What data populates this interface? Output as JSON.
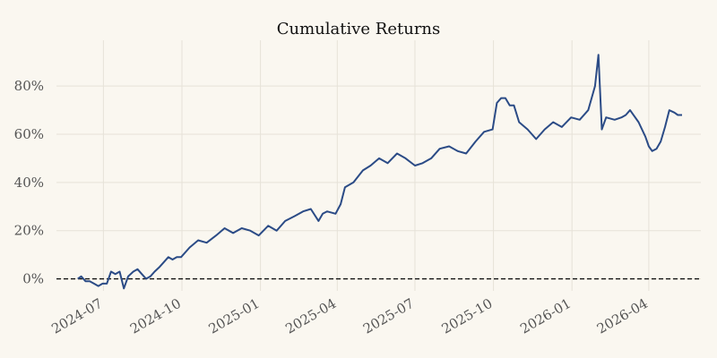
{
  "chart_data": {
    "type": "line",
    "title": "Cumulative Returns",
    "xlabel": "",
    "ylabel": "",
    "ylim": [
      -5,
      99
    ],
    "xlim": [
      "2024-05-07",
      "2026-06-01"
    ],
    "y_ticks": [
      0,
      20,
      40,
      60,
      80
    ],
    "y_tick_labels": [
      "0%",
      "20%",
      "40%",
      "60%",
      "80%"
    ],
    "x_ticks": [
      "2024-07-01",
      "2024-10-01",
      "2025-01-01",
      "2025-04-01",
      "2025-07-01",
      "2025-10-01",
      "2026-01-01",
      "2026-04-01"
    ],
    "x_tick_labels": [
      "2024-07",
      "2024-10",
      "2025-01",
      "2025-04",
      "2025-07",
      "2025-10",
      "2026-01",
      "2026-04"
    ],
    "grid": true,
    "reference_line": {
      "y": 0,
      "style": "dashed"
    },
    "colors": {
      "series": "#2b4b86",
      "background": "#faf7f0",
      "grid": "#e6e2d8",
      "reference": "#111111"
    },
    "series": [
      {
        "x": [
          "2024-06-01",
          "2024-06-05",
          "2024-06-10",
          "2024-06-15",
          "2024-06-20",
          "2024-06-25",
          "2024-06-30",
          "2024-07-05",
          "2024-07-10",
          "2024-07-15",
          "2024-07-20",
          "2024-07-25",
          "2024-07-30",
          "2024-08-05",
          "2024-08-10",
          "2024-08-15",
          "2024-08-20",
          "2024-08-25",
          "2024-08-30",
          "2024-09-05",
          "2024-09-10",
          "2024-09-15",
          "2024-09-20",
          "2024-09-25",
          "2024-09-30",
          "2024-10-10",
          "2024-10-20",
          "2024-10-30",
          "2024-11-10",
          "2024-11-20",
          "2024-11-30",
          "2024-12-10",
          "2024-12-20",
          "2024-12-30",
          "2025-01-10",
          "2025-01-20",
          "2025-01-30",
          "2025-02-10",
          "2025-02-20",
          "2025-03-01",
          "2025-03-10",
          "2025-03-15",
          "2025-03-20",
          "2025-03-30",
          "2025-04-05",
          "2025-04-10",
          "2025-04-20",
          "2025-05-01",
          "2025-05-10",
          "2025-05-20",
          "2025-05-30",
          "2025-06-10",
          "2025-06-20",
          "2025-07-01",
          "2025-07-10",
          "2025-07-20",
          "2025-07-30",
          "2025-08-10",
          "2025-08-20",
          "2025-08-30",
          "2025-09-10",
          "2025-09-20",
          "2025-09-30",
          "2025-10-05",
          "2025-10-10",
          "2025-10-15",
          "2025-10-20",
          "2025-10-25",
          "2025-10-31",
          "2025-11-10",
          "2025-11-20",
          "2025-11-30",
          "2025-12-10",
          "2025-12-20",
          "2025-12-31",
          "2026-01-10",
          "2026-01-20",
          "2026-01-28",
          "2026-02-01",
          "2026-02-05",
          "2026-02-10",
          "2026-02-20",
          "2026-02-28",
          "2026-03-05",
          "2026-03-10",
          "2026-03-20",
          "2026-03-28",
          "2026-04-01",
          "2026-04-05",
          "2026-04-10",
          "2026-04-15",
          "2026-04-20",
          "2026-04-25",
          "2026-05-01",
          "2026-05-05",
          "2026-05-10"
        ],
        "y": [
          0,
          1,
          -1,
          -1,
          -2,
          -3,
          -2,
          -2,
          3,
          2,
          3,
          -4,
          1,
          3,
          4,
          2,
          0,
          1,
          3,
          5,
          7,
          9,
          8,
          9,
          9,
          13,
          16,
          15,
          18,
          21,
          19,
          21,
          20,
          18,
          22,
          20,
          24,
          26,
          28,
          29,
          24,
          27,
          28,
          27,
          31,
          38,
          40,
          45,
          47,
          50,
          48,
          52,
          50,
          47,
          48,
          50,
          54,
          55,
          53,
          52,
          57,
          61,
          62,
          73,
          75,
          75,
          72,
          72,
          65,
          62,
          58,
          62,
          65,
          63,
          67,
          66,
          70,
          80,
          93,
          62,
          67,
          66,
          67,
          68,
          70,
          65,
          59,
          55,
          53,
          54,
          57,
          63,
          70,
          69,
          68,
          68
        ]
      }
    ]
  }
}
